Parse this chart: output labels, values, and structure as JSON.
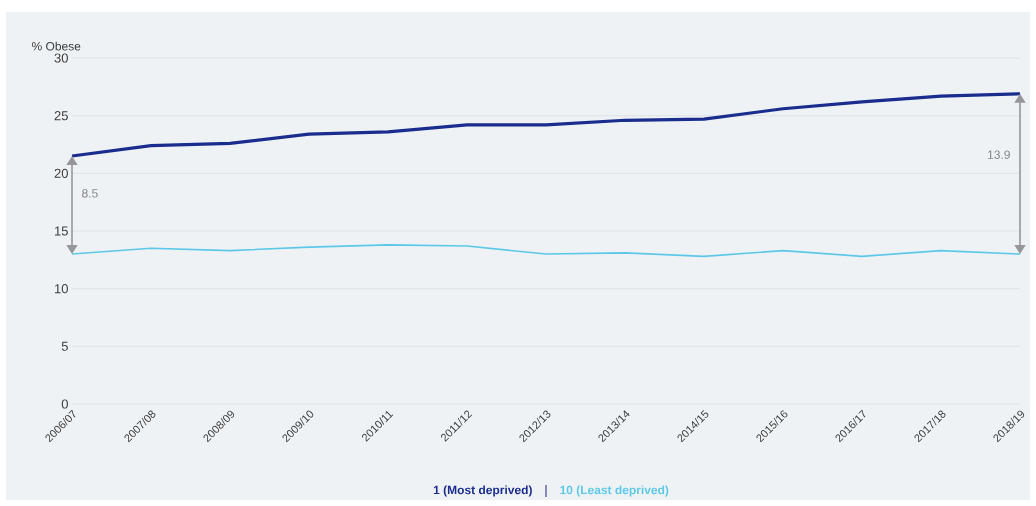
{
  "chart_data": {
    "type": "line",
    "ylabel": "% Obese",
    "categories": [
      "2006/07",
      "2007/08",
      "2008/09",
      "2009/10",
      "2010/11",
      "2011/12",
      "2012/13",
      "2013/14",
      "2014/15",
      "2015/16",
      "2016/17",
      "2017/18",
      "2018/19"
    ],
    "series": [
      {
        "name": "1 (Most deprived)",
        "color": "#1a2d8f",
        "values": [
          21.5,
          22.4,
          22.6,
          23.4,
          23.6,
          24.2,
          24.2,
          24.6,
          24.7,
          25.6,
          26.2,
          26.7,
          26.9
        ]
      },
      {
        "name": "10 (Least deprived)",
        "color": "#5bc8e8",
        "values": [
          13.0,
          13.5,
          13.3,
          13.6,
          13.8,
          13.7,
          13.0,
          13.1,
          12.8,
          13.3,
          12.8,
          13.3,
          13.0
        ]
      }
    ],
    "ylim": [
      0,
      30
    ],
    "yticks": [
      0,
      5,
      10,
      15,
      20,
      25,
      30
    ],
    "grid": "y",
    "legend": "bottom",
    "marker": "none",
    "line_style": "solid",
    "annotations": [
      "8.5",
      "13.9"
    ]
  }
}
